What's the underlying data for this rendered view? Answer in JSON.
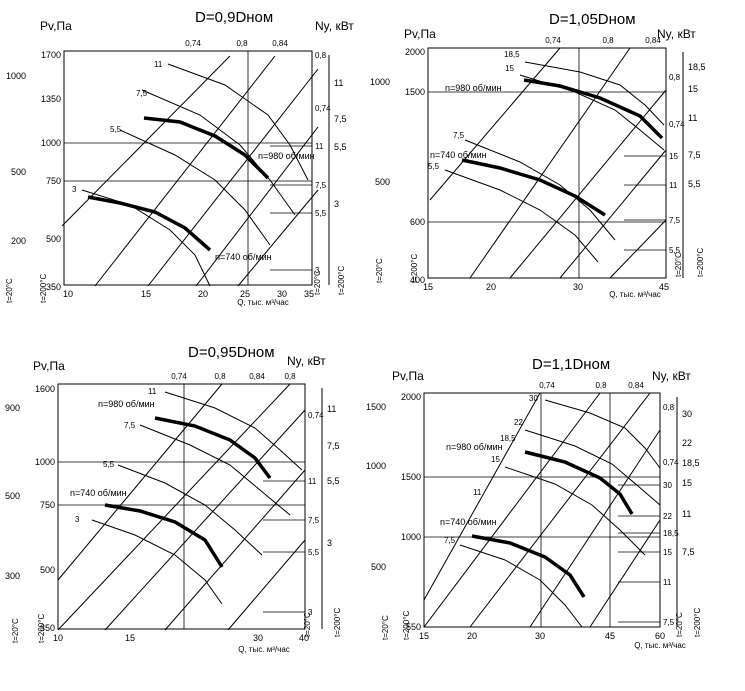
{
  "chart_data": [
    {
      "type": "line",
      "title": "D=0,9Dном",
      "ylabel": "Pv,Па",
      "power_label": "Ny, кВт",
      "xlabel": "Q, тыс. м³/час",
      "temp_labels": [
        "t=20°C",
        "t=200°C",
        "t=20°C",
        "t=200°C"
      ],
      "x_ticks": [
        "10",
        "15",
        "20",
        "25",
        "30",
        "35"
      ],
      "y_ticks_outer": [
        "1000",
        "500",
        "200"
      ],
      "y_ticks_inner": [
        "1700",
        "1350",
        "1000",
        "750",
        "500",
        "350"
      ],
      "efficiency_labels": [
        "0,74",
        "0,8",
        "0,84"
      ],
      "efficiency_labels_right": [
        "0,8",
        "0,74"
      ],
      "power_ticks_inner": [
        "11",
        "7,5",
        "5,5",
        "3"
      ],
      "power_ticks_outer": [
        "11",
        "7,5",
        "5,5",
        "3"
      ],
      "power_curve_labels": [
        "11",
        "7,5",
        "5,5",
        "3"
      ],
      "series": [
        {
          "name": "n=980 об/мин",
          "x": [
            15,
            18,
            21,
            24,
            27
          ],
          "y": [
            1180,
            1130,
            1040,
            900,
            700
          ]
        },
        {
          "name": "n=740 об/мин",
          "x": [
            11,
            13,
            15,
            17,
            20
          ],
          "y": [
            660,
            630,
            580,
            500,
            380
          ]
        }
      ]
    },
    {
      "type": "line",
      "title": "D=1,05Dном",
      "ylabel": "Pv,Па",
      "power_label": "Ny, кВт",
      "xlabel": "Q, тыс. м³/час",
      "temp_labels": [
        "t=20°C",
        "t=200°C",
        "t=20°C",
        "t=200°C"
      ],
      "x_ticks": [
        "15",
        "20",
        "30",
        "45"
      ],
      "y_ticks_outer": [
        "1000",
        "500"
      ],
      "y_ticks_inner": [
        "2000",
        "1500",
        "600",
        "400"
      ],
      "efficiency_labels": [
        "0,74",
        "0,8",
        "0,84"
      ],
      "efficiency_labels_right": [
        "0,8",
        "0,74"
      ],
      "power_ticks_inner": [
        "15",
        "11",
        "7,5",
        "5,5"
      ],
      "power_ticks_outer": [
        "18,5",
        "15",
        "11",
        "7,5",
        "5,5"
      ],
      "power_curve_labels": [
        "18,5",
        "15",
        "7,5",
        "5,5"
      ],
      "series": [
        {
          "name": "n=980 об/мин",
          "x": [
            22,
            26,
            30,
            35,
            40,
            45
          ],
          "y": [
            1700,
            1660,
            1600,
            1500,
            1350,
            1150
          ]
        },
        {
          "name": "n=740 об/мин",
          "x": [
            18,
            22,
            26,
            30,
            33
          ],
          "y": [
            980,
            940,
            880,
            790,
            670
          ]
        }
      ]
    },
    {
      "type": "line",
      "title": "D=0,95Dном",
      "ylabel": "Pv,Па",
      "power_label": "Ny, кВт",
      "xlabel": "Q, тыс. м³/час",
      "temp_labels": [
        "t=20°C",
        "t=200°C",
        "t=20°C",
        "t=200°C"
      ],
      "x_ticks": [
        "10",
        "15",
        "30",
        "40"
      ],
      "y_ticks_outer": [
        "900",
        "500",
        "300"
      ],
      "y_ticks_inner": [
        "1600",
        "1000",
        "750",
        "500",
        "350"
      ],
      "efficiency_labels": [
        "0,74",
        "0,8",
        "0,84",
        "0,8"
      ],
      "efficiency_labels_right": [
        "0,74"
      ],
      "power_ticks_inner": [
        "11",
        "7,5",
        "5,5",
        "3"
      ],
      "power_ticks_outer": [
        "11",
        "7,5",
        "5,5",
        "3"
      ],
      "power_curve_labels": [
        "11",
        "7,5",
        "5,5",
        "3"
      ],
      "series": [
        {
          "name": "n=980 об/мин",
          "x": [
            18,
            22,
            26,
            29,
            32
          ],
          "y": [
            1400,
            1350,
            1260,
            1150,
            1000
          ]
        },
        {
          "name": "n=740 об/мин",
          "x": [
            14,
            17,
            20,
            23,
            25
          ],
          "y": [
            800,
            770,
            720,
            640,
            520
          ]
        }
      ]
    },
    {
      "type": "line",
      "title": "D=1,1Dном",
      "ylabel": "Pv,Па",
      "power_label": "Ny, кВт",
      "xlabel": "Q, тыс. м³/час",
      "temp_labels": [
        "t=20°C",
        "t=200°C",
        "t=20°C",
        "t=200°C"
      ],
      "x_ticks": [
        "15",
        "20",
        "30",
        "45",
        "60"
      ],
      "y_ticks_outer": [
        "1500",
        "1000",
        "500"
      ],
      "y_ticks_inner": [
        "2000",
        "1500",
        "1000",
        "550"
      ],
      "efficiency_labels": [
        "0,74",
        "0,8",
        "0,84"
      ],
      "efficiency_labels_right": [
        "0,8",
        "0,74"
      ],
      "power_ticks_inner": [
        "30",
        "22",
        "18,5",
        "15",
        "11",
        "7,5"
      ],
      "power_ticks_outer": [
        "30",
        "22",
        "18,5",
        "15",
        "11",
        "7,5"
      ],
      "power_curve_labels": [
        "30",
        "22",
        "18,5",
        "15",
        "11",
        "7,5"
      ],
      "series": [
        {
          "name": "n=980 об/мин",
          "x": [
            28,
            33,
            38,
            43,
            48
          ],
          "y": [
            1620,
            1580,
            1500,
            1390,
            1230
          ]
        },
        {
          "name": "n=740 об/мин",
          "x": [
            20,
            25,
            30,
            34,
            37
          ],
          "y": [
            1000,
            960,
            890,
            790,
            660
          ]
        }
      ]
    }
  ]
}
